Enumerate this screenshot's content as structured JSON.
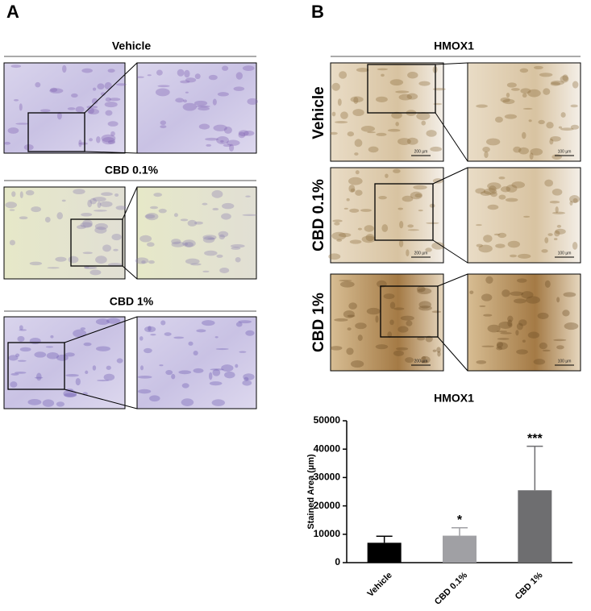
{
  "panel_a": {
    "label": "A",
    "sections": [
      {
        "title": "Vehicle"
      },
      {
        "title": "CBD 0.1%"
      },
      {
        "title": "CBD 1%"
      }
    ]
  },
  "panel_b": {
    "label": "B",
    "title": "HMOX1",
    "rows": [
      {
        "label": "Vehicle",
        "scale_left": "200 µm",
        "scale_right": "100 µm"
      },
      {
        "label": "CBD 0.1%",
        "scale_left": "200 µm",
        "scale_right": "100 µm"
      },
      {
        "label": "CBD 1%",
        "scale_left": "200 µm",
        "scale_right": "100 µm"
      }
    ]
  },
  "chart_data": {
    "type": "bar",
    "title": "HMOX1",
    "y_label": "Stained Area (µm)",
    "categories": [
      "Vehicle",
      "CBD 0.1%",
      "CBD 1%"
    ],
    "values": [
      7000,
      9500,
      25500
    ],
    "errors": [
      2300,
      2800,
      15500
    ],
    "colors": [
      "#000000",
      "#a0a0a4",
      "#6e6e70"
    ],
    "significance": [
      null,
      "*",
      "***"
    ],
    "ylim": [
      0,
      50000
    ],
    "yticks": [
      0,
      10000,
      20000,
      30000,
      40000,
      50000
    ]
  }
}
